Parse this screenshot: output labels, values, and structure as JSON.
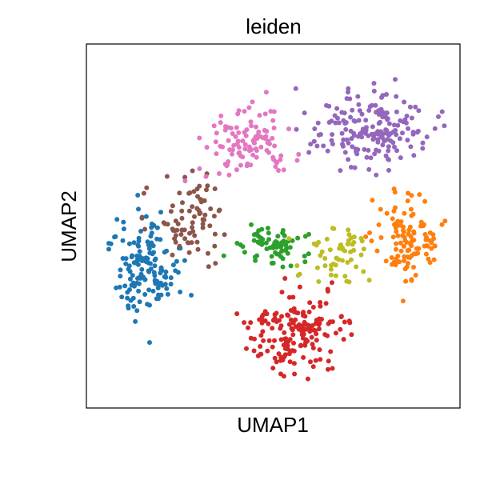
{
  "chart_data": {
    "type": "scatter",
    "title": "leiden",
    "xlabel": "UMAP1",
    "ylabel": "UMAP2",
    "xlim": [
      0,
      10
    ],
    "ylim": [
      0,
      10
    ],
    "x_ticks": [],
    "y_ticks": [],
    "grid": false,
    "legend": "none",
    "point_radius_hint": "small",
    "series": [
      {
        "color": "#1f77b4",
        "center": [
          1.6,
          3.9
        ],
        "spread": [
          0.8,
          1.3
        ],
        "count": 150
      },
      {
        "color": "#ff7f0e",
        "center": [
          8.6,
          4.6
        ],
        "spread": [
          0.7,
          1.1
        ],
        "count": 110
      },
      {
        "color": "#2ca02c",
        "center": [
          5.0,
          4.5
        ],
        "spread": [
          0.8,
          0.6
        ],
        "count": 70
      },
      {
        "color": "#d62728",
        "center": [
          5.6,
          2.1
        ],
        "spread": [
          1.2,
          0.9
        ],
        "count": 170
      },
      {
        "color": "#9467bd",
        "center": [
          7.6,
          7.6
        ],
        "spread": [
          1.4,
          1.0
        ],
        "count": 180
      },
      {
        "color": "#8c564b",
        "center": [
          2.8,
          5.3
        ],
        "spread": [
          0.9,
          1.1
        ],
        "count": 80
      },
      {
        "color": "#e377c2",
        "center": [
          4.3,
          7.3
        ],
        "spread": [
          1.0,
          0.9
        ],
        "count": 110
      },
      {
        "color": "#bcbd22",
        "center": [
          6.6,
          4.2
        ],
        "spread": [
          0.9,
          0.7
        ],
        "count": 55
      }
    ]
  }
}
